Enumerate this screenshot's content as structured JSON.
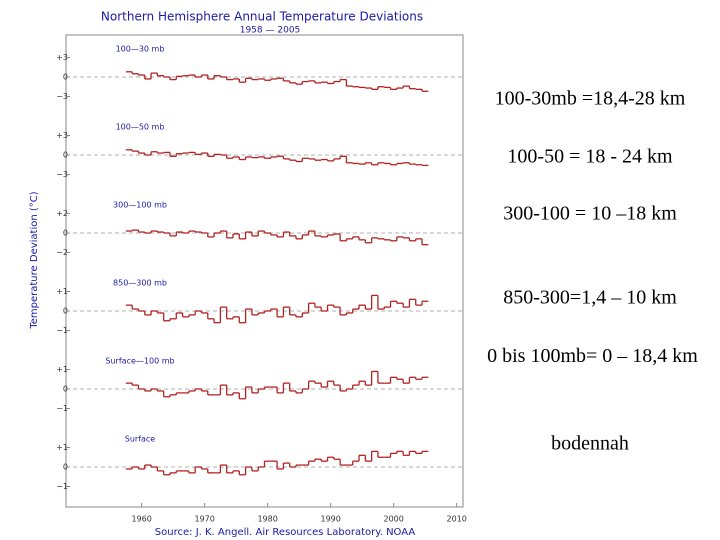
{
  "figure": {
    "title": "Northern Hemisphere Annual Temperature Deviations",
    "subtitle": "1958 — 2005",
    "ylabel": "Temperature Deviation (°C)",
    "source": "Source: J. K. Angell. Air Resources Laboratory. NOAA",
    "xlim": [
      1948,
      2011
    ],
    "xticks": [
      1960,
      1970,
      1980,
      1990,
      2000,
      2010
    ]
  },
  "chart_data": [
    {
      "type": "line",
      "title": "100—30 mb",
      "color": "#b22222",
      "ylim": [
        -6,
        6
      ],
      "yticks": [
        {
          "value": -3,
          "label": "−3"
        },
        0,
        {
          "value": 3,
          "label": "+3"
        }
      ],
      "x": [
        1958,
        1959,
        1960,
        1961,
        1962,
        1963,
        1964,
        1965,
        1966,
        1967,
        1968,
        1969,
        1970,
        1971,
        1972,
        1973,
        1974,
        1975,
        1976,
        1977,
        1978,
        1979,
        1980,
        1981,
        1982,
        1983,
        1984,
        1985,
        1986,
        1987,
        1988,
        1989,
        1990,
        1991,
        1992,
        1993,
        1994,
        1995,
        1996,
        1997,
        1998,
        1999,
        2000,
        2001,
        2002,
        2003,
        2004,
        2005
      ],
      "values": [
        0.8,
        0.5,
        0.3,
        -0.3,
        0.6,
        0.2,
        0,
        -0.4,
        0.1,
        0.2,
        0.3,
        0,
        0.3,
        -0.3,
        0.2,
        0,
        -0.4,
        -0.3,
        -0.8,
        -0.2,
        -0.4,
        -0.3,
        -0.5,
        -0.3,
        -0.2,
        -0.6,
        -0.9,
        -1.1,
        -0.7,
        -0.6,
        -0.9,
        -0.8,
        -1.0,
        -0.7,
        -0.4,
        -1.4,
        -1.5,
        -1.6,
        -1.7,
        -1.9,
        -1.5,
        -1.6,
        -1.9,
        -1.7,
        -1.4,
        -1.8,
        -1.9,
        -2.2
      ]
    },
    {
      "type": "line",
      "title": "100—50 mb",
      "color": "#b22222",
      "ylim": [
        -6,
        6
      ],
      "yticks": [
        {
          "value": -3,
          "label": "−3"
        },
        0,
        {
          "value": 3,
          "label": "+3"
        }
      ],
      "x": [
        1958,
        1959,
        1960,
        1961,
        1962,
        1963,
        1964,
        1965,
        1966,
        1967,
        1968,
        1969,
        1970,
        1971,
        1972,
        1973,
        1974,
        1975,
        1976,
        1977,
        1978,
        1979,
        1980,
        1981,
        1982,
        1983,
        1984,
        1985,
        1986,
        1987,
        1988,
        1989,
        1990,
        1991,
        1992,
        1993,
        1994,
        1995,
        1996,
        1997,
        1998,
        1999,
        2000,
        2001,
        2002,
        2003,
        2004,
        2005
      ],
      "values": [
        0.8,
        0.6,
        0.3,
        0,
        0.5,
        0.3,
        0.4,
        -0.2,
        0.2,
        0.3,
        0.4,
        0.1,
        0.3,
        -0.2,
        0.1,
        0,
        -0.5,
        -0.3,
        -0.7,
        -0.3,
        -0.4,
        -0.3,
        -0.5,
        -0.3,
        -0.2,
        -0.6,
        -0.8,
        -1.0,
        -0.5,
        -0.6,
        -0.8,
        -0.7,
        -0.9,
        -0.6,
        -0.2,
        -1.2,
        -1.3,
        -1.4,
        -1.2,
        -1.5,
        -1.2,
        -1.3,
        -1.5,
        -1.3,
        -1.2,
        -1.4,
        -1.5,
        -1.6
      ]
    },
    {
      "type": "line",
      "title": "300—100 mb",
      "color": "#b22222",
      "ylim": [
        -4,
        4
      ],
      "yticks": [
        {
          "value": -2,
          "label": "−2"
        },
        0,
        {
          "value": 2,
          "label": "+2"
        }
      ],
      "x": [
        1958,
        1959,
        1960,
        1961,
        1962,
        1963,
        1964,
        1965,
        1966,
        1967,
        1968,
        1969,
        1970,
        1971,
        1972,
        1973,
        1974,
        1975,
        1976,
        1977,
        1978,
        1979,
        1980,
        1981,
        1982,
        1983,
        1984,
        1985,
        1986,
        1987,
        1988,
        1989,
        1990,
        1991,
        1992,
        1993,
        1994,
        1995,
        1996,
        1997,
        1998,
        1999,
        2000,
        2001,
        2002,
        2003,
        2004,
        2005
      ],
      "values": [
        0.2,
        0.3,
        0.1,
        0,
        0.2,
        0.1,
        0,
        -0.3,
        0.1,
        0,
        0.2,
        0.1,
        0,
        -0.4,
        0,
        0.2,
        -0.5,
        -0.1,
        -0.6,
        0.1,
        -0.3,
        0.2,
        0,
        -0.2,
        -0.4,
        0.1,
        -0.3,
        -0.6,
        -0.2,
        0.2,
        -0.3,
        -0.4,
        -0.2,
        -0.1,
        -0.8,
        -0.6,
        -0.4,
        -0.7,
        -1.0,
        -0.5,
        -0.6,
        -0.7,
        -0.8,
        -0.4,
        -0.5,
        -0.8,
        -0.6,
        -1.2
      ]
    },
    {
      "type": "line",
      "title": "850—300 mb",
      "color": "#b22222",
      "ylim": [
        -2,
        2
      ],
      "yticks": [
        {
          "value": -1,
          "label": "−1"
        },
        0,
        {
          "value": 1,
          "label": "+1"
        }
      ],
      "x": [
        1958,
        1959,
        1960,
        1961,
        1962,
        1963,
        1964,
        1965,
        1966,
        1967,
        1968,
        1969,
        1970,
        1971,
        1972,
        1973,
        1974,
        1975,
        1976,
        1977,
        1978,
        1979,
        1980,
        1981,
        1982,
        1983,
        1984,
        1985,
        1986,
        1987,
        1988,
        1989,
        1990,
        1991,
        1992,
        1993,
        1994,
        1995,
        1996,
        1997,
        1998,
        1999,
        2000,
        2001,
        2002,
        2003,
        2004,
        2005
      ],
      "values": [
        0.3,
        0.1,
        0,
        -0.2,
        0,
        -0.1,
        -0.5,
        -0.4,
        -0.1,
        -0.3,
        -0.2,
        0,
        -0.1,
        -0.4,
        -0.6,
        0.2,
        -0.4,
        -0.3,
        -0.6,
        0.1,
        -0.2,
        -0.1,
        0,
        0.1,
        -0.3,
        0.2,
        -0.2,
        -0.3,
        -0.1,
        0.4,
        0.2,
        0,
        0.3,
        0.2,
        -0.2,
        -0.1,
        0.1,
        0.3,
        0.1,
        0.8,
        0.1,
        0.2,
        0.5,
        0.4,
        0.2,
        0.6,
        0.3,
        0.5
      ]
    },
    {
      "type": "line",
      "title": "Surface—100 mb",
      "color": "#b22222",
      "ylim": [
        -2,
        2
      ],
      "yticks": [
        {
          "value": -1,
          "label": "−1"
        },
        0,
        {
          "value": 1,
          "label": "+1"
        }
      ],
      "x": [
        1958,
        1959,
        1960,
        1961,
        1962,
        1963,
        1964,
        1965,
        1966,
        1967,
        1968,
        1969,
        1970,
        1971,
        1972,
        1973,
        1974,
        1975,
        1976,
        1977,
        1978,
        1979,
        1980,
        1981,
        1982,
        1983,
        1984,
        1985,
        1986,
        1987,
        1988,
        1989,
        1990,
        1991,
        1992,
        1993,
        1994,
        1995,
        1996,
        1997,
        1998,
        1999,
        2000,
        2001,
        2002,
        2003,
        2004,
        2005
      ],
      "values": [
        0.3,
        0.2,
        0,
        -0.1,
        0,
        -0.1,
        -0.4,
        -0.3,
        -0.2,
        -0.2,
        -0.1,
        0,
        -0.1,
        -0.3,
        -0.3,
        0.2,
        -0.3,
        -0.2,
        -0.5,
        0.1,
        -0.2,
        0,
        0.1,
        0.1,
        -0.2,
        0.3,
        -0.1,
        -0.2,
        0,
        0.4,
        0.3,
        0.1,
        0.4,
        0.2,
        -0.1,
        0,
        0.2,
        0.4,
        0.2,
        0.9,
        0.3,
        0.3,
        0.6,
        0.5,
        0.3,
        0.6,
        0.5,
        0.6
      ]
    },
    {
      "type": "line",
      "title": "Surface",
      "color": "#b22222",
      "ylim": [
        -2,
        2
      ],
      "yticks": [
        {
          "value": -1,
          "label": "−1"
        },
        0,
        {
          "value": 1,
          "label": "+1"
        }
      ],
      "x": [
        1958,
        1959,
        1960,
        1961,
        1962,
        1963,
        1964,
        1965,
        1966,
        1967,
        1968,
        1969,
        1970,
        1971,
        1972,
        1973,
        1974,
        1975,
        1976,
        1977,
        1978,
        1979,
        1980,
        1981,
        1982,
        1983,
        1984,
        1985,
        1986,
        1987,
        1988,
        1989,
        1990,
        1991,
        1992,
        1993,
        1994,
        1995,
        1996,
        1997,
        1998,
        1999,
        2000,
        2001,
        2002,
        2003,
        2004,
        2005
      ],
      "values": [
        -0.1,
        0,
        -0.1,
        0.1,
        0,
        -0.2,
        -0.4,
        -0.3,
        -0.2,
        -0.2,
        -0.3,
        0,
        -0.1,
        -0.3,
        -0.3,
        0.1,
        -0.3,
        -0.2,
        -0.4,
        0,
        -0.2,
        0,
        0.3,
        0.3,
        -0.1,
        0.2,
        0,
        0.1,
        0.1,
        0.3,
        0.4,
        0.3,
        0.5,
        0.4,
        0.1,
        0.1,
        0.3,
        0.6,
        0.3,
        0.8,
        0.5,
        0.5,
        0.7,
        0.8,
        0.6,
        0.8,
        0.7,
        0.8
      ]
    }
  ],
  "notes": [
    "100-30mb =18,4-28 km",
    "100-50 = 18 - 24 km",
    "300-100 = 10 –18 km",
    "850-300=1,4 – 10 km",
    "0 bis 100mb= 0 – 18,4 km",
    "bodennah"
  ]
}
